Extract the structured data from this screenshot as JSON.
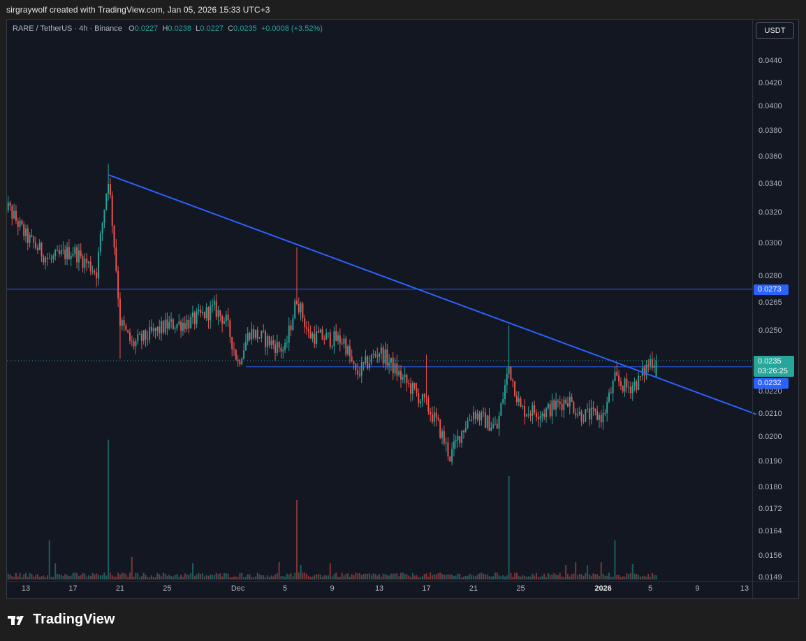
{
  "header": {
    "text": "sirgraywolf created with TradingView.com, Jan 05, 2026 15:33 UTC+3"
  },
  "symbol": {
    "name": "RARE / TetherUS · 4h · Binance",
    "open_label": "O",
    "open": "0.0227",
    "high_label": "H",
    "high": "0.0238",
    "low_label": "L",
    "low": "0.0227",
    "close_label": "C",
    "close": "0.0235",
    "change": "+0.0008 (+3.52%)"
  },
  "currency_button": "USDT",
  "price_axis": {
    "ticks": [
      "0.0440",
      "0.0420",
      "0.0400",
      "0.0380",
      "0.0360",
      "0.0340",
      "0.0320",
      "0.0300",
      "0.0280",
      "0.0265",
      "0.0250",
      "0.0220",
      "0.0210",
      "0.0200",
      "0.0190",
      "0.0180",
      "0.0172",
      "0.0164",
      "0.0156",
      "0.0149"
    ],
    "labels": {
      "resistance": "0.0273",
      "current": "0.0235",
      "countdown": "03:26:25",
      "support": "0.0232"
    }
  },
  "time_axis": {
    "ticks": [
      "13",
      "17",
      "21",
      "25",
      "Dec",
      "5",
      "9",
      "13",
      "17",
      "21",
      "25",
      "2026",
      "5",
      "9",
      "13"
    ]
  },
  "branding": {
    "logo_text": "TradingView"
  },
  "colors": {
    "up": "#26a69a",
    "down": "#ef5350",
    "trendline": "#2962ff",
    "level": "#2962ff",
    "background": "#131722"
  },
  "chart_data": {
    "type": "candlestick",
    "symbol": "RARE / TetherUS",
    "interval": "4h",
    "exchange": "Binance",
    "scale": "log",
    "ylim": [
      0.0149,
      0.046
    ],
    "x_start": "2025-11-11",
    "x_end": "2026-01-14",
    "anchors": [
      {
        "date": "2025-11-11",
        "price": 0.033
      },
      {
        "date": "2025-11-13",
        "price": 0.0305
      },
      {
        "date": "2025-11-15",
        "price": 0.029
      },
      {
        "date": "2025-11-17",
        "price": 0.0296
      },
      {
        "date": "2025-11-19",
        "price": 0.0283
      },
      {
        "date": "2025-11-20",
        "price": 0.0345
      },
      {
        "date": "2025-11-21",
        "price": 0.0255
      },
      {
        "date": "2025-11-22",
        "price": 0.0243
      },
      {
        "date": "2025-11-25",
        "price": 0.0253
      },
      {
        "date": "2025-11-27",
        "price": 0.0255
      },
      {
        "date": "2025-11-29",
        "price": 0.0262
      },
      {
        "date": "2025-11-30",
        "price": 0.0255
      },
      {
        "date": "2025-12-01",
        "price": 0.0234
      },
      {
        "date": "2025-12-02",
        "price": 0.025
      },
      {
        "date": "2025-12-05",
        "price": 0.024
      },
      {
        "date": "2025-12-06",
        "price": 0.0268
      },
      {
        "date": "2025-12-07",
        "price": 0.0248
      },
      {
        "date": "2025-12-10",
        "price": 0.0245
      },
      {
        "date": "2025-12-11",
        "price": 0.0228
      },
      {
        "date": "2025-12-13",
        "price": 0.024
      },
      {
        "date": "2025-12-15",
        "price": 0.0226
      },
      {
        "date": "2025-12-17",
        "price": 0.0214
      },
      {
        "date": "2025-12-18",
        "price": 0.0205
      },
      {
        "date": "2025-12-19",
        "price": 0.0192
      },
      {
        "date": "2025-12-20",
        "price": 0.0203
      },
      {
        "date": "2025-12-21",
        "price": 0.0211
      },
      {
        "date": "2025-12-22",
        "price": 0.0207
      },
      {
        "date": "2025-12-23",
        "price": 0.0204
      },
      {
        "date": "2025-12-24",
        "price": 0.0232
      },
      {
        "date": "2025-12-25",
        "price": 0.0212
      },
      {
        "date": "2025-12-27",
        "price": 0.0211
      },
      {
        "date": "2025-12-29",
        "price": 0.0217
      },
      {
        "date": "2025-12-30",
        "price": 0.021
      },
      {
        "date": "2026-01-01",
        "price": 0.0209
      },
      {
        "date": "2026-01-02",
        "price": 0.0226
      },
      {
        "date": "2026-01-03",
        "price": 0.0222
      },
      {
        "date": "2026-01-04",
        "price": 0.0225
      },
      {
        "date": "2026-01-05",
        "price": 0.0235
      }
    ],
    "last_candle": {
      "open": 0.0227,
      "high": 0.0238,
      "low": 0.0227,
      "close": 0.0235
    },
    "annotations": {
      "horizontal_resistance": 0.0273,
      "horizontal_support": 0.0232,
      "descending_trendline": [
        {
          "date": "2025-11-20",
          "price": 0.0347
        },
        {
          "date": "2026-01-14",
          "price": 0.021
        }
      ]
    },
    "volume_spikes": [
      {
        "date": "2025-11-20",
        "rel": 1.0
      },
      {
        "date": "2025-12-06",
        "rel": 0.57
      },
      {
        "date": "2025-12-24",
        "rel": 0.74
      },
      {
        "date": "2026-01-02",
        "rel": 0.28
      },
      {
        "date": "2025-11-15",
        "rel": 0.28
      },
      {
        "date": "2025-11-22",
        "rel": 0.16
      }
    ]
  }
}
